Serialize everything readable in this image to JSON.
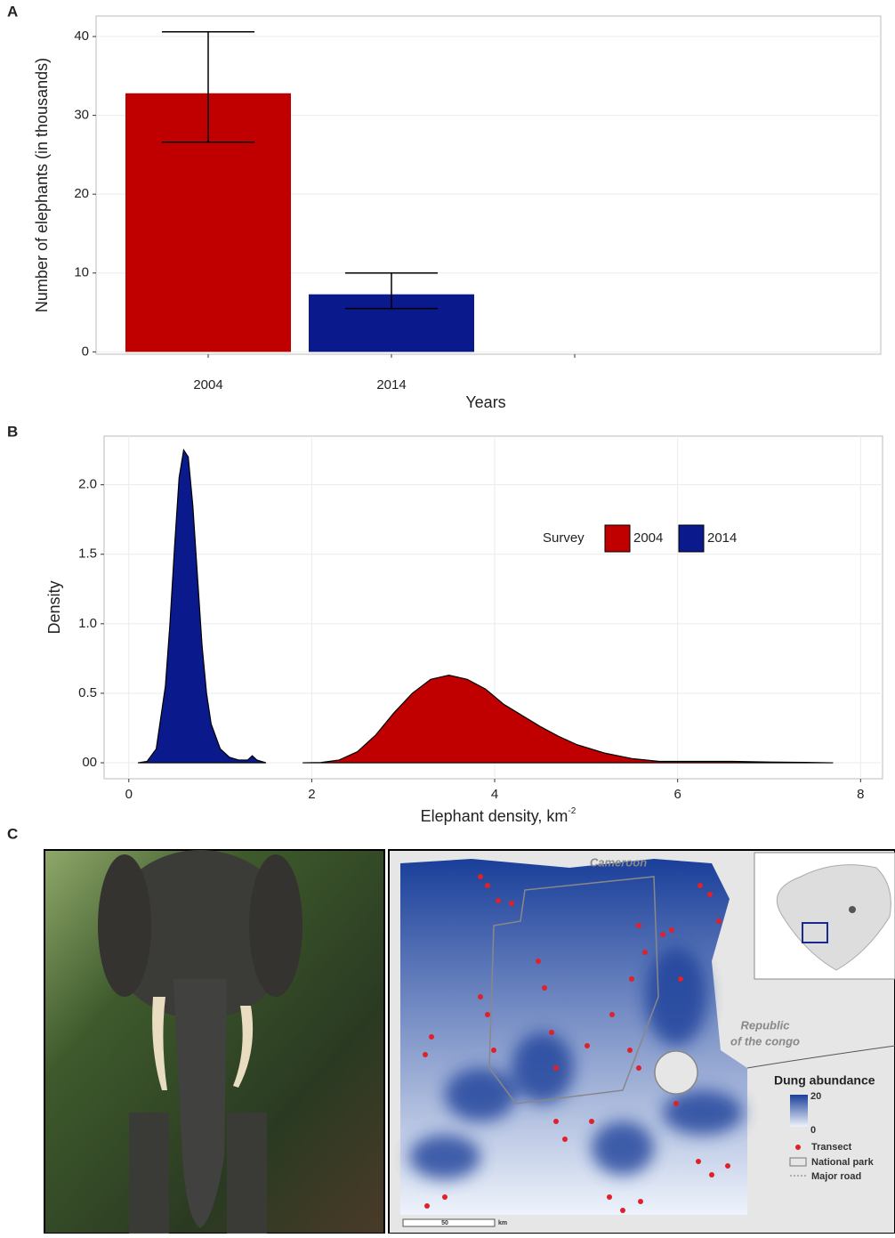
{
  "chart_data": [
    {
      "type": "bar",
      "panel_label": "A",
      "xlabel": "Years",
      "ylabel": "Number of elephants (in thousands)",
      "categories": [
        "2004",
        "2014",
        null
      ],
      "values": [
        32.8,
        7.3,
        null
      ],
      "ci_low": [
        26.6,
        5.5,
        null
      ],
      "ci_high": [
        40.6,
        10.0,
        null
      ],
      "colors": [
        "#c00000",
        "#0a1a8c"
      ],
      "ylim": [
        -0.3,
        42.6
      ],
      "yticks": [
        0,
        10,
        20,
        30,
        40
      ],
      "grid": true
    },
    {
      "type": "density",
      "panel_label": "B",
      "xlabel": "Elephant density, km",
      "xlabel_sup": "-2",
      "ylabel": "Density",
      "legend_title": "Survey",
      "legend_position": "top-right",
      "series": [
        {
          "name": "2004",
          "color": "#c00000",
          "x": [
            1.9,
            2.1,
            2.3,
            2.5,
            2.7,
            2.9,
            3.1,
            3.3,
            3.5,
            3.7,
            3.9,
            4.1,
            4.3,
            4.5,
            4.7,
            4.9,
            5.2,
            5.5,
            5.8,
            6.2,
            6.6,
            7.0,
            7.4,
            7.7
          ],
          "values": [
            0,
            0.002,
            0.02,
            0.08,
            0.2,
            0.36,
            0.5,
            0.6,
            0.63,
            0.6,
            0.53,
            0.42,
            0.34,
            0.26,
            0.19,
            0.13,
            0.07,
            0.03,
            0.01,
            0.01,
            0.01,
            0.005,
            0.003,
            0
          ]
        },
        {
          "name": "2014",
          "color": "#0a1a8c",
          "x": [
            0.1,
            0.2,
            0.3,
            0.4,
            0.45,
            0.5,
            0.55,
            0.6,
            0.65,
            0.7,
            0.75,
            0.8,
            0.85,
            0.9,
            1.0,
            1.1,
            1.2,
            1.3,
            1.35,
            1.4,
            1.5
          ],
          "values": [
            0,
            0.01,
            0.1,
            0.55,
            1.0,
            1.55,
            2.05,
            2.25,
            2.2,
            1.85,
            1.35,
            0.85,
            0.5,
            0.28,
            0.1,
            0.04,
            0.02,
            0.02,
            0.05,
            0.02,
            0
          ]
        }
      ],
      "xlim": [
        -0.27,
        8.24
      ],
      "xticks": [
        0,
        2,
        4,
        6,
        8
      ],
      "ylim": [
        -0.115,
        2.35
      ],
      "yticks": [
        {
          "value": 0,
          "label": "00"
        },
        0.5,
        {
          "value": 1.0,
          "label": "1.0"
        },
        1.5,
        {
          "value": 2.0,
          "label": "2.0"
        }
      ],
      "grid": true
    }
  ],
  "panel_c": {
    "label": "C",
    "country_top": "Cameroon",
    "country_right": [
      "Republic",
      "of the congo"
    ],
    "legend_title": "Dung abundance",
    "scale_max": 20,
    "scale_min": 0,
    "legend_items": [
      "Transect",
      "National park",
      "Major road"
    ],
    "scale_bar": "50",
    "scale_unit": "km"
  }
}
